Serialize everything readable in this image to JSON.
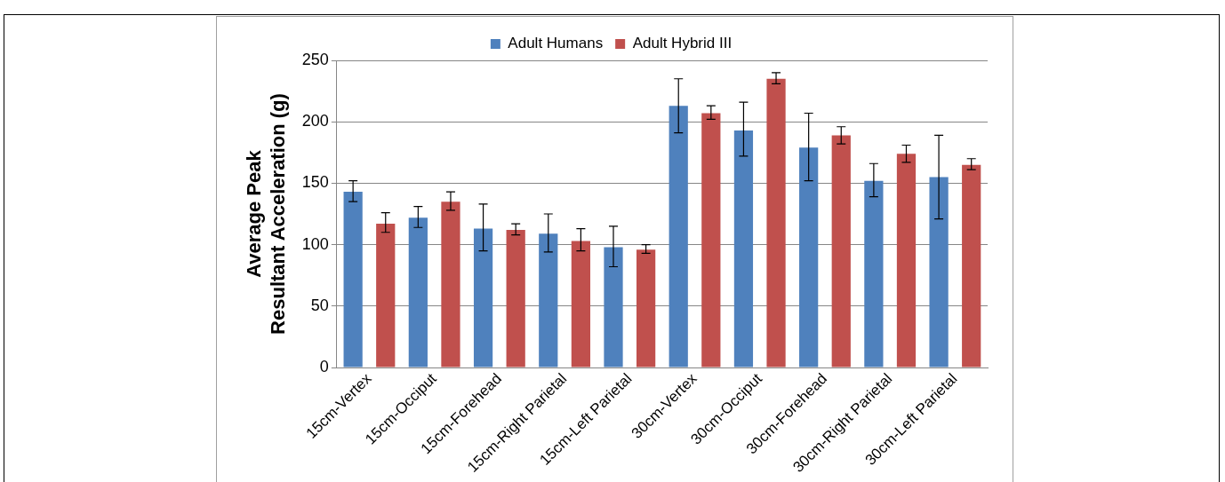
{
  "chart_data": {
    "type": "bar",
    "ylabel": "Average Peak\nResultant Acceleration (g)",
    "categories": [
      "15cm-Vertex",
      "15cm-Occiput",
      "15cm-Forehead",
      "15cm-Right Parietal",
      "15cm-Left Parietal",
      "30cm-Vertex",
      "30cm-Occiput",
      "30cm-Forehead",
      "30cm-Right Parietal",
      "30cm-Left Parietal"
    ],
    "series": [
      {
        "name": "Adult Humans",
        "color": "#4f81bd",
        "values": [
          143,
          122,
          113,
          109,
          98,
          213,
          193,
          179,
          152,
          155
        ],
        "errors": [
          [
            135,
            152
          ],
          [
            114,
            131
          ],
          [
            95,
            133
          ],
          [
            94,
            125
          ],
          [
            82,
            115
          ],
          [
            191,
            235
          ],
          [
            172,
            216
          ],
          [
            152,
            207
          ],
          [
            139,
            166
          ],
          [
            121,
            189
          ]
        ]
      },
      {
        "name": "Adult Hybrid III",
        "color": "#c0504d",
        "values": [
          117,
          135,
          112,
          103,
          96,
          207,
          235,
          189,
          174,
          165
        ],
        "errors": [
          [
            110,
            126
          ],
          [
            128,
            143
          ],
          [
            108,
            117
          ],
          [
            95,
            113
          ],
          [
            93,
            100
          ],
          [
            202,
            213
          ],
          [
            231,
            240
          ],
          [
            182,
            196
          ],
          [
            167,
            181
          ],
          [
            161,
            170
          ]
        ]
      }
    ],
    "ylim": [
      0,
      250
    ],
    "yticks": [
      0,
      50,
      100,
      150,
      200,
      250
    ],
    "grid": "y",
    "legend": "top"
  }
}
